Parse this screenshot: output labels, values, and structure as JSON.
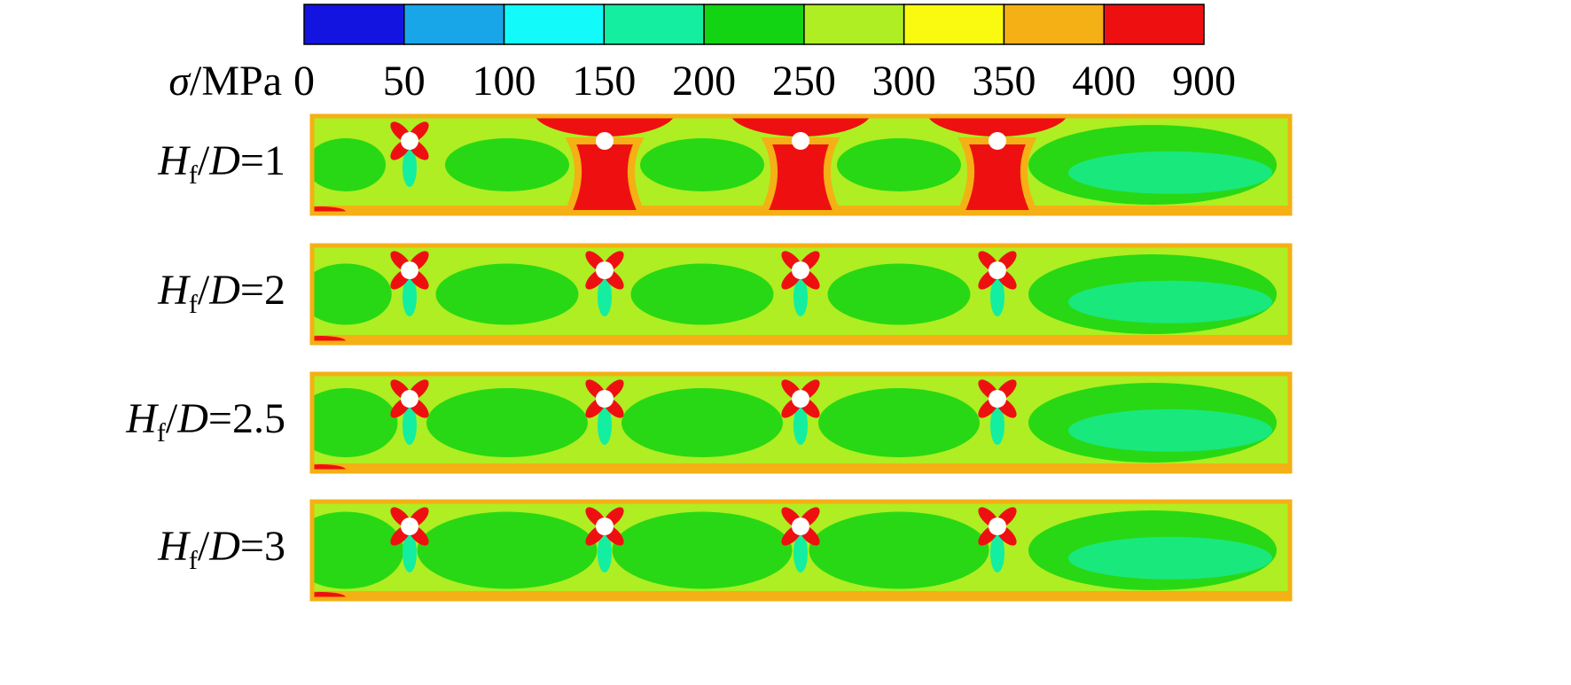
{
  "colorbar": {
    "symbol": "σ",
    "unit": "/MPa",
    "ticks": [
      0,
      50,
      100,
      150,
      200,
      250,
      300,
      350,
      400,
      900
    ],
    "colors": [
      "#1414e0",
      "#18a6e8",
      "#12fafa",
      "#14eea0",
      "#12d412",
      "#aeee22",
      "#fafa10",
      "#f4b014",
      "#ee1010"
    ]
  },
  "panels": [
    {
      "label": [
        "H",
        "f",
        "/",
        "D",
        "=",
        "1"
      ]
    },
    {
      "label": [
        "H",
        "f",
        "/",
        "D",
        "=",
        "2"
      ]
    },
    {
      "label": [
        "H",
        "f",
        "/",
        "D",
        "=",
        "2.5"
      ]
    },
    {
      "label": [
        "H",
        "f",
        "/",
        "D",
        "=",
        "3"
      ]
    }
  ]
}
